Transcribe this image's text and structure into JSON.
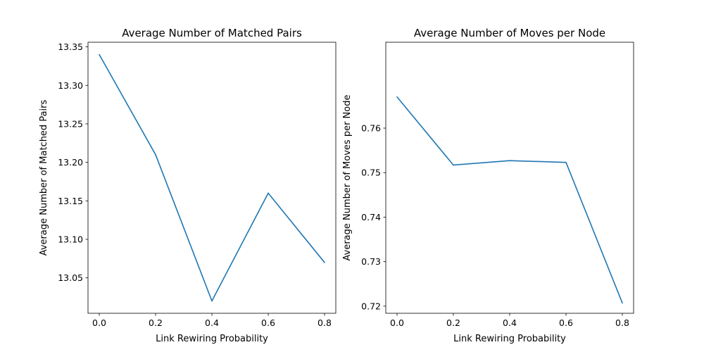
{
  "chart_data": [
    {
      "type": "line",
      "title": "Average Number of Matched Pairs",
      "xlabel": "Link Rewiring Probability",
      "ylabel": "Average Number of Matched Pairs",
      "x": [
        0.0,
        0.2,
        0.4,
        0.6,
        0.8
      ],
      "series": [
        {
          "values": [
            13.34,
            13.21,
            13.02,
            13.16,
            13.07
          ],
          "color": "#1f77b4"
        }
      ],
      "xlim": [
        -0.04,
        0.84
      ],
      "ylim": [
        13.004,
        13.356
      ],
      "xticks": [
        0.0,
        0.2,
        0.4,
        0.6,
        0.8
      ],
      "xtick_labels": [
        "0.0",
        "0.2",
        "0.4",
        "0.6",
        "0.8"
      ],
      "yticks": [
        13.05,
        13.1,
        13.15,
        13.2,
        13.25,
        13.3,
        13.35
      ],
      "ytick_labels": [
        "13.05",
        "13.10",
        "13.15",
        "13.20",
        "13.25",
        "13.30",
        "13.35"
      ],
      "grid": false,
      "legend": "none"
    },
    {
      "type": "line",
      "title": "Average Number of Moves per Node",
      "xlabel": "Link Rewiring Probability",
      "ylabel": "Average Number of Moves per Node",
      "x": [
        0.0,
        0.2,
        0.4,
        0.6,
        0.8
      ],
      "series": [
        {
          "values": [
            0.767,
            0.7517,
            0.7527,
            0.7523,
            0.7207
          ],
          "color": "#1f77b4"
        }
      ],
      "xlim": [
        -0.04,
        0.84
      ],
      "ylim": [
        0.7184,
        0.7793
      ],
      "xticks": [
        0.0,
        0.2,
        0.4,
        0.6,
        0.8
      ],
      "xtick_labels": [
        "0.0",
        "0.2",
        "0.4",
        "0.6",
        "0.8"
      ],
      "yticks": [
        0.72,
        0.73,
        0.74,
        0.75,
        0.76
      ],
      "ytick_labels": [
        "0.72",
        "0.73",
        "0.74",
        "0.75",
        "0.76"
      ],
      "grid": false,
      "legend": "none"
    }
  ]
}
